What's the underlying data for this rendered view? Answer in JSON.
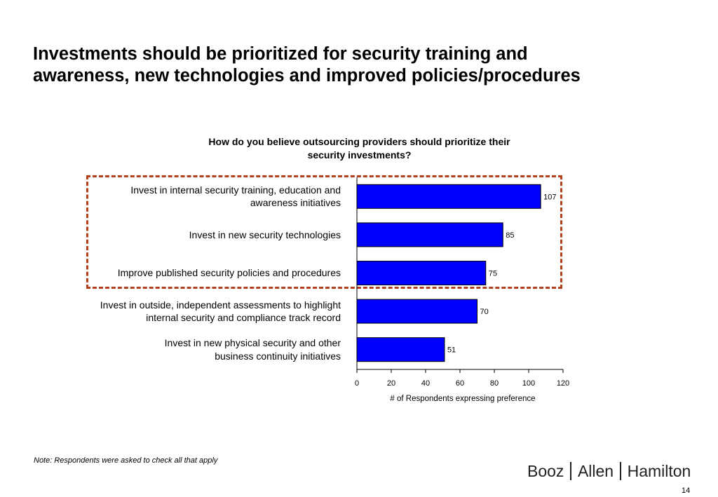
{
  "slide": {
    "title_line1": "Investments should be prioritized for security training and",
    "title_line2": "awareness, new technologies and improved policies/procedures",
    "note": "Note:  Respondents were asked to check all that apply",
    "logo": [
      "Booz",
      "Allen",
      "Hamilton"
    ],
    "page_number": "14"
  },
  "colors": {
    "bar": "#0000ff",
    "highlight_border": "#b5401e"
  },
  "chart_data": {
    "type": "bar",
    "orientation": "horizontal",
    "title_line1": "How do you believe outsourcing providers should prioritize their",
    "title_line2": "security investments?",
    "categories": [
      [
        "Invest in internal security training, education and",
        "awareness initiatives"
      ],
      [
        "Invest in new security technologies"
      ],
      [
        "Improve published security policies and procedures"
      ],
      [
        "Invest in outside, independent assessments to highlight",
        "internal security and compliance track record"
      ],
      [
        "Invest in new physical security and other",
        "business continuity initiatives"
      ]
    ],
    "values": [
      107,
      85,
      75,
      70,
      51
    ],
    "xlabel": "# of Respondents expressing preference",
    "xlim": [
      0,
      120
    ],
    "xticks": [
      0,
      20,
      40,
      60,
      80,
      100,
      120
    ],
    "grid": false,
    "highlighted_categories": [
      0,
      1,
      2
    ]
  }
}
